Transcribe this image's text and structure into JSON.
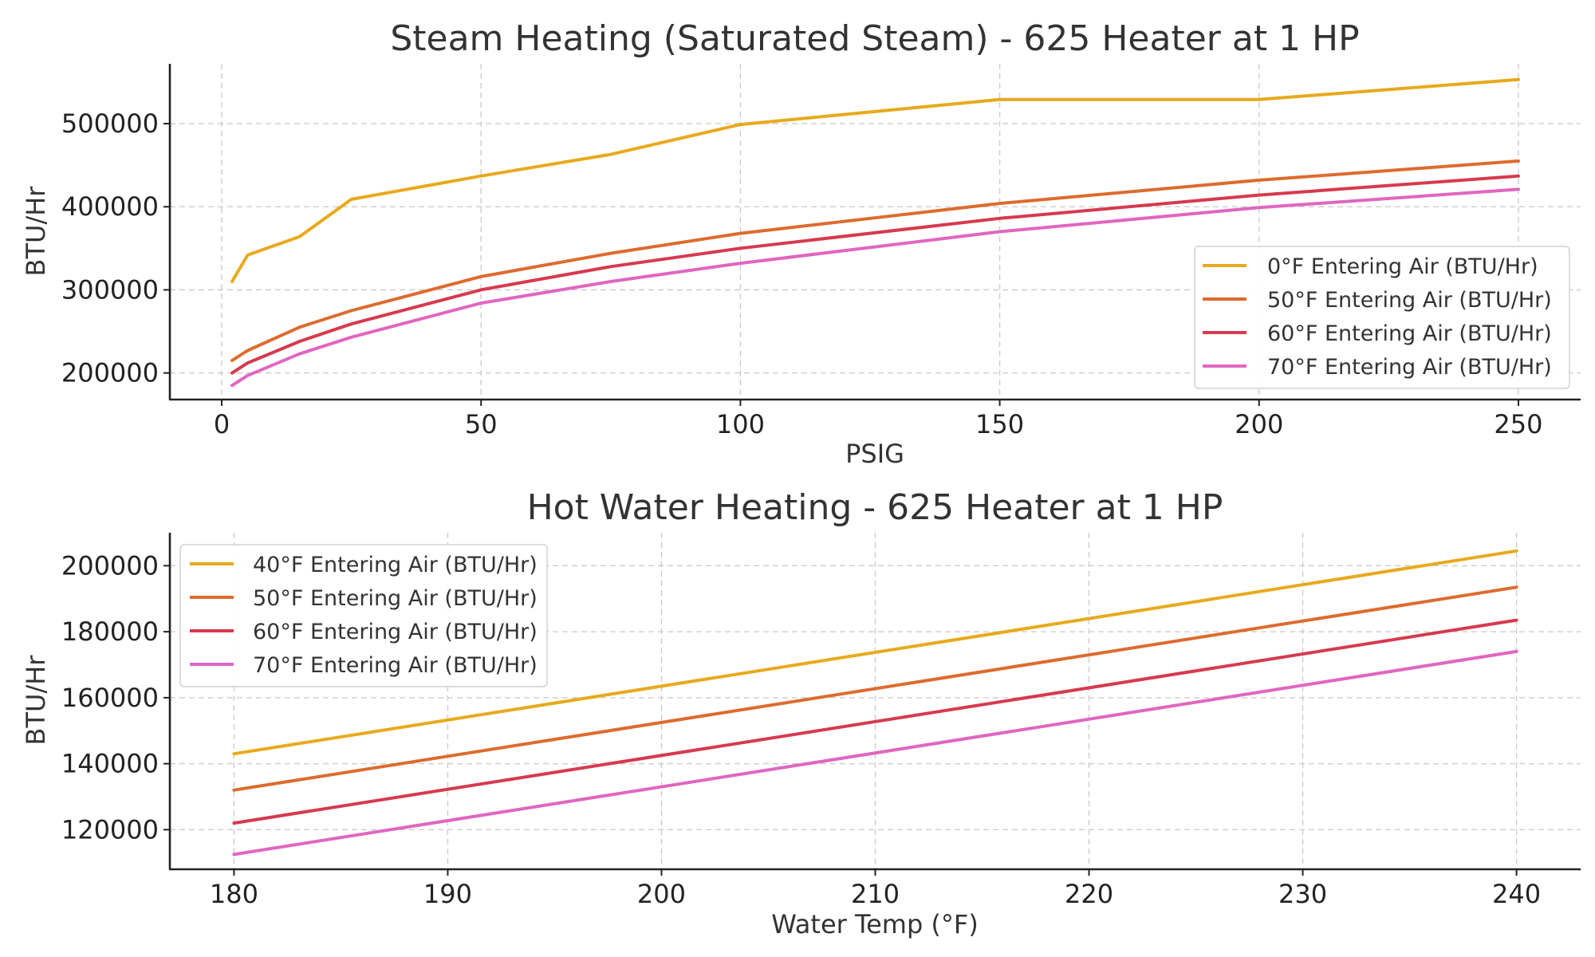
{
  "chart_data": [
    {
      "type": "line",
      "title": "Steam Heating (Saturated Steam) - 625 Heater at 1 HP",
      "xlabel": "PSIG",
      "ylabel": "BTU/Hr",
      "xlim": [
        -10,
        262
      ],
      "ylim": [
        168000,
        572000
      ],
      "xticks": [
        0,
        50,
        100,
        150,
        200,
        250
      ],
      "yticks": [
        200000,
        300000,
        400000,
        500000
      ],
      "grid": true,
      "legend_position": "lower-right",
      "x": [
        2,
        5,
        15,
        25,
        50,
        75,
        100,
        150,
        200,
        250
      ],
      "series": [
        {
          "name": "0°F Entering Air (BTU/Hr)",
          "color": "#e8a91c",
          "values": [
            310000,
            342000,
            364000,
            409000,
            437000,
            463000,
            499000,
            529000,
            529000,
            553000
          ]
        },
        {
          "name": "50°F Entering Air (BTU/Hr)",
          "color": "#dd6b2e",
          "values": [
            215000,
            227000,
            255000,
            275000,
            316000,
            344000,
            368000,
            404000,
            432000,
            455000
          ]
        },
        {
          "name": "60°F Entering Air (BTU/Hr)",
          "color": "#d63a4e",
          "values": [
            200000,
            212000,
            238000,
            259000,
            300000,
            328000,
            350000,
            386000,
            414000,
            437000
          ]
        },
        {
          "name": "70°F Entering Air (BTU/Hr)",
          "color": "#e066c0",
          "values": [
            185000,
            197000,
            223000,
            243000,
            284000,
            310000,
            332000,
            370000,
            399000,
            421000
          ]
        }
      ]
    },
    {
      "type": "line",
      "title": "Hot Water Heating - 625 Heater at 1 HP",
      "xlabel": "Water Temp (°F)",
      "ylabel": "BTU/Hr",
      "xlim": [
        177,
        243
      ],
      "ylim": [
        108000,
        210000
      ],
      "xticks": [
        180,
        190,
        200,
        210,
        220,
        230,
        240
      ],
      "yticks": [
        120000,
        140000,
        160000,
        180000,
        200000
      ],
      "grid": true,
      "legend_position": "upper-left",
      "x": [
        180,
        240
      ],
      "series": [
        {
          "name": "40°F Entering Air (BTU/Hr)",
          "color": "#e8a91c",
          "values": [
            143000,
            204500
          ]
        },
        {
          "name": "50°F Entering Air (BTU/Hr)",
          "color": "#dd6b2e",
          "values": [
            132000,
            193500
          ]
        },
        {
          "name": "60°F Entering Air (BTU/Hr)",
          "color": "#d63a4e",
          "values": [
            122000,
            183500
          ]
        },
        {
          "name": "70°F Entering Air (BTU/Hr)",
          "color": "#e066c0",
          "values": [
            112500,
            174000
          ]
        }
      ]
    }
  ]
}
